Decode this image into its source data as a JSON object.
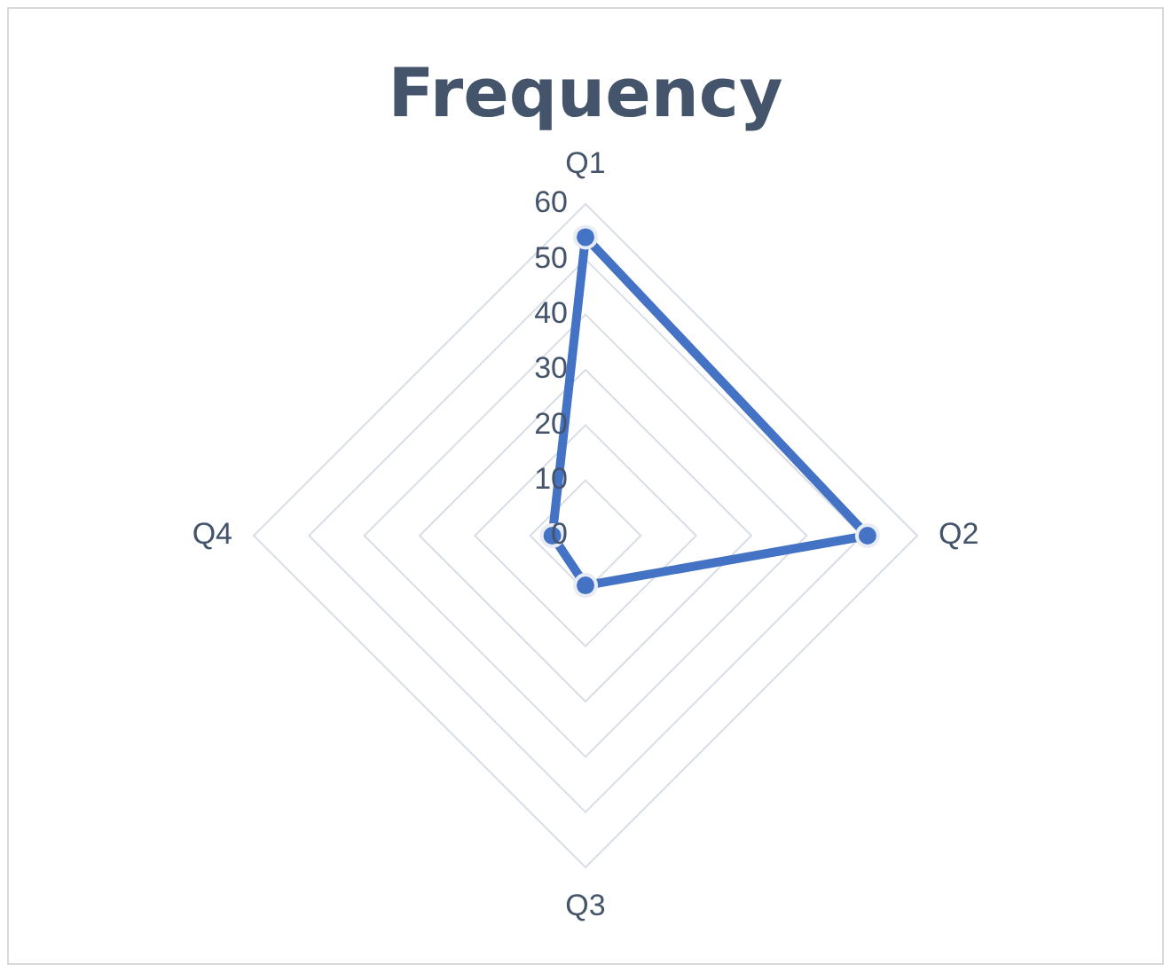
{
  "chart_data": {
    "type": "radar",
    "title": "Frequency",
    "categories": [
      "Q1",
      "Q2",
      "Q3",
      "Q4"
    ],
    "series": [
      {
        "color": "#4472c4",
        "values": [
          54,
          51,
          9,
          6
        ]
      }
    ],
    "ylim": [
      0,
      60
    ],
    "yticks": [
      0,
      10,
      20,
      30,
      40,
      50,
      60
    ],
    "grid": true,
    "legend": false,
    "marker": "circle",
    "line_style": "solid"
  }
}
